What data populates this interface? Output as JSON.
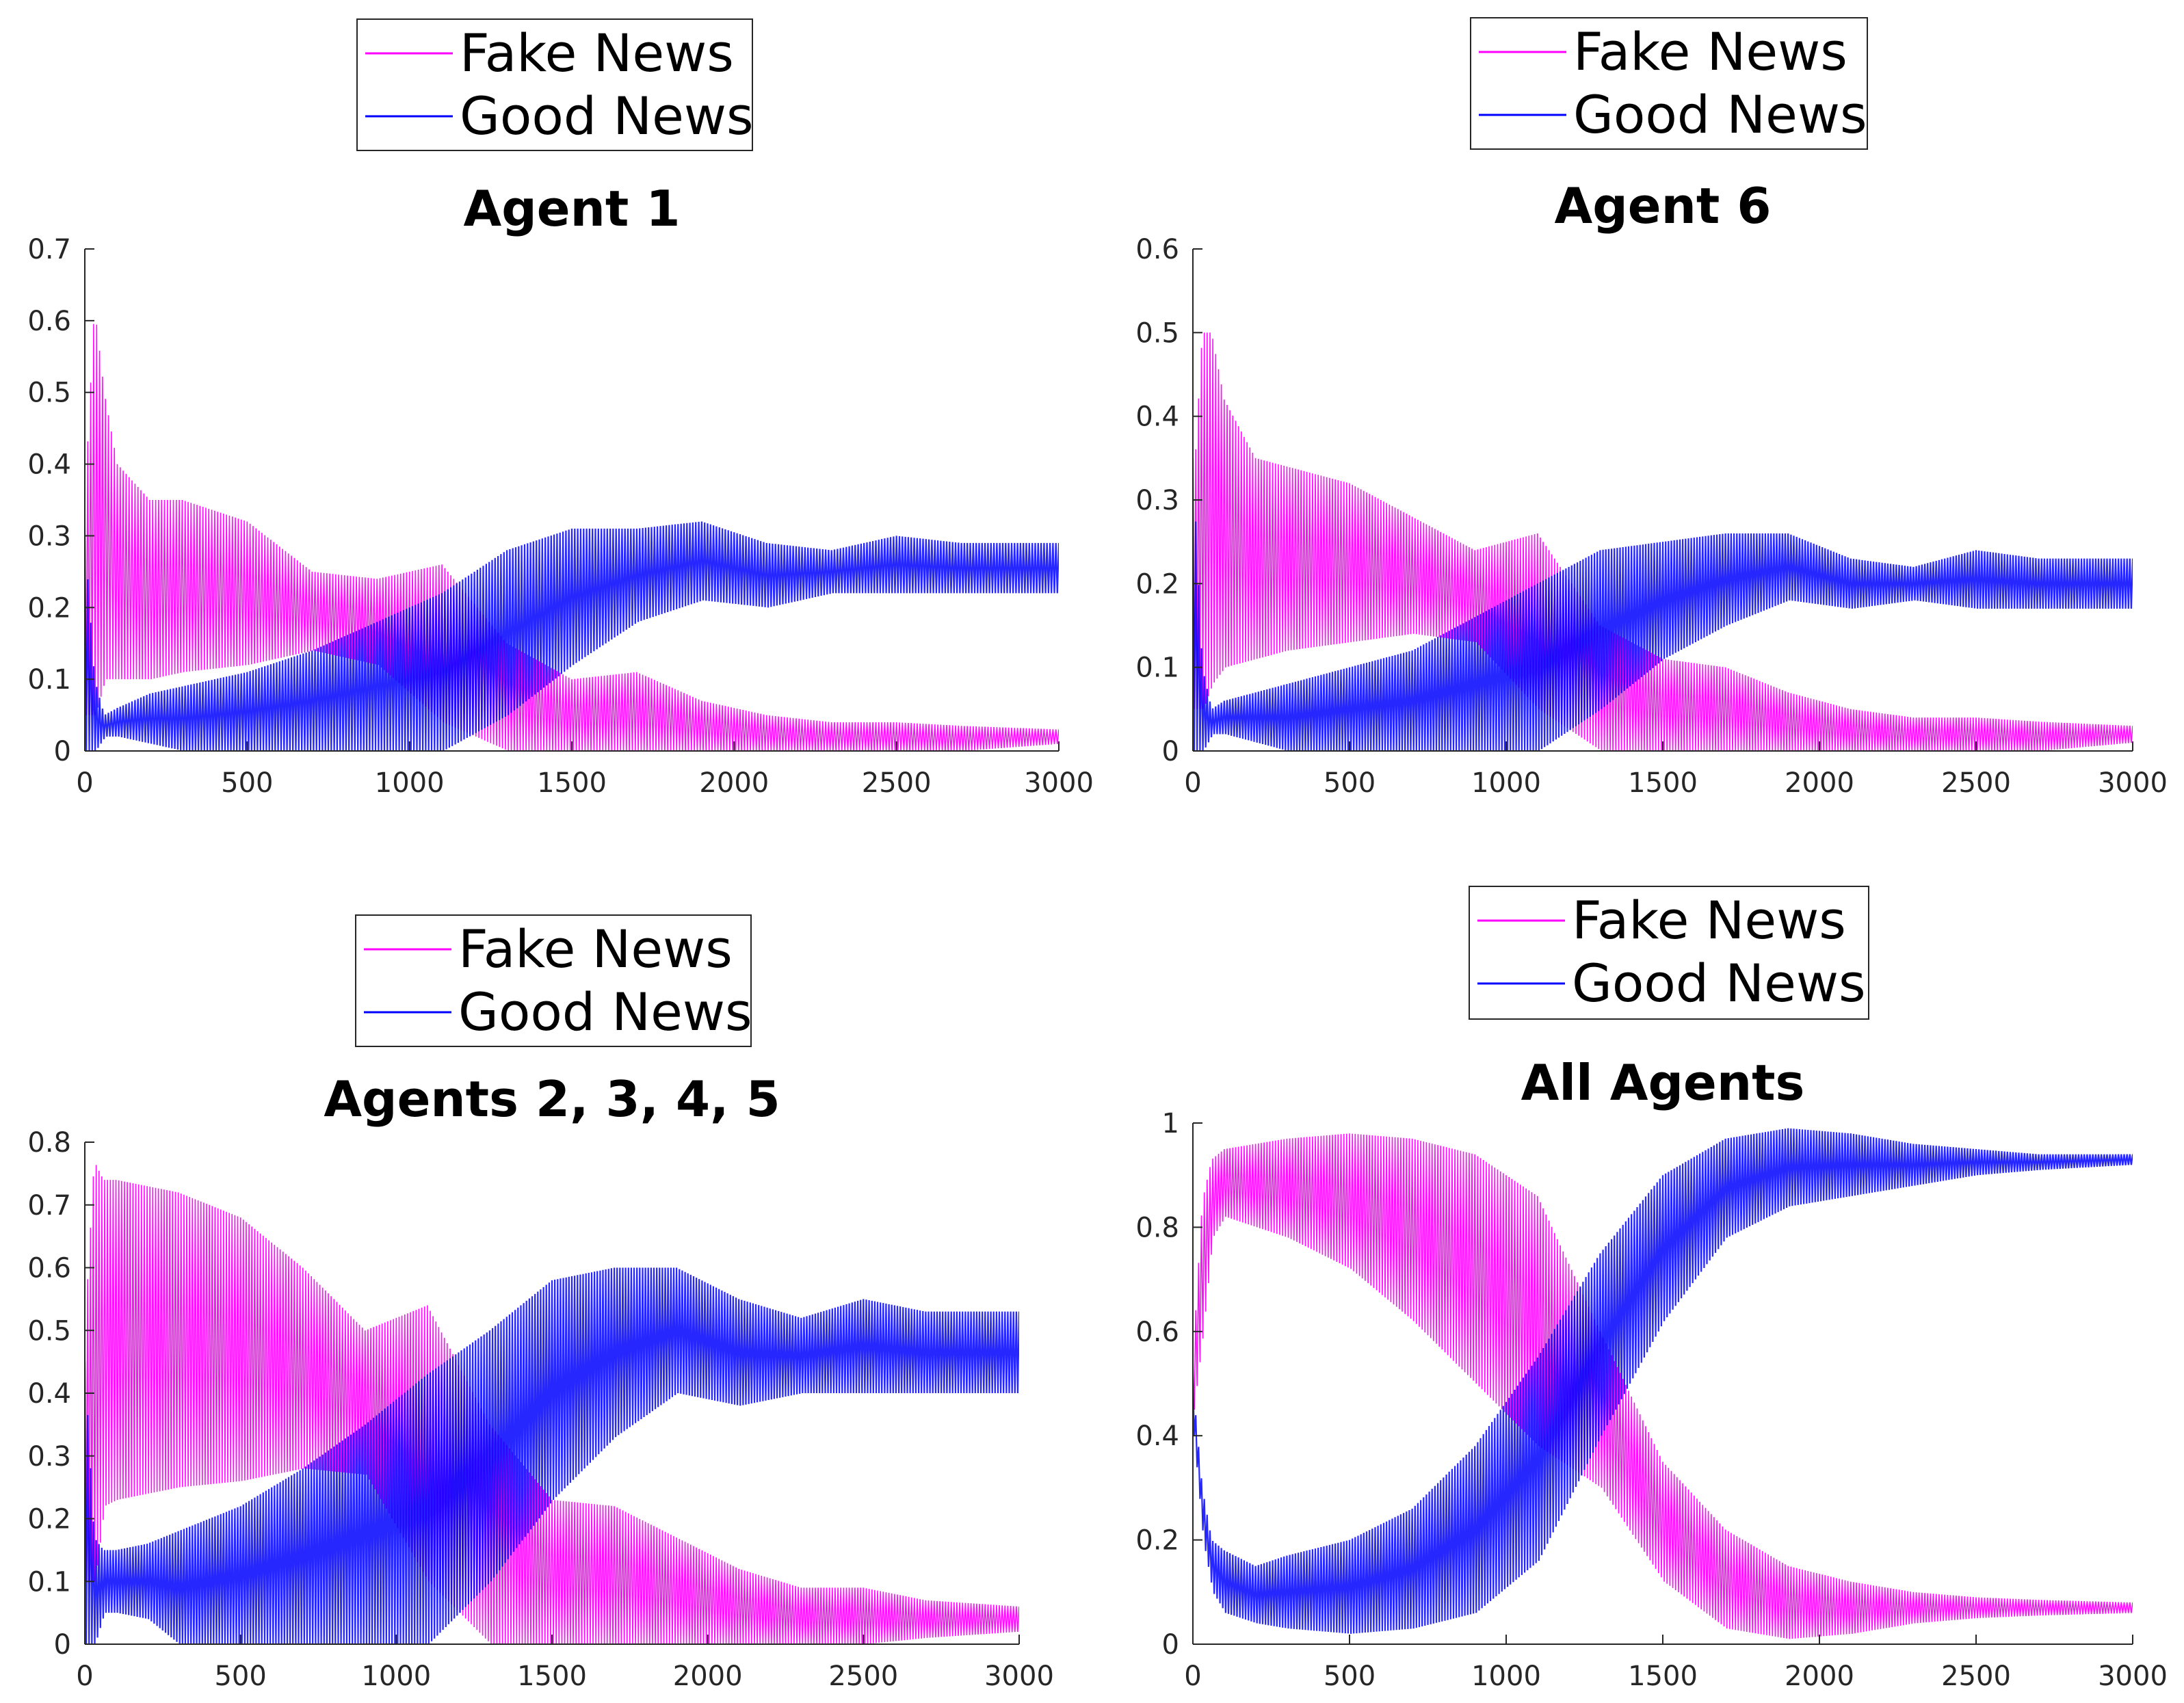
{
  "colors": {
    "fake": "#ff00ff",
    "good": "#0000ff",
    "axis": "#262626",
    "text": "#000000"
  },
  "chart_data": [
    {
      "type": "line",
      "title": "Agent 1",
      "xlabel": "",
      "ylabel": "",
      "xlim": [
        0,
        3000
      ],
      "ylim": [
        0,
        0.7
      ],
      "xticks": [
        0,
        500,
        1000,
        1500,
        2000,
        2500,
        3000
      ],
      "xtick_labels": [
        "0",
        "500",
        "1000",
        "1500",
        "2000",
        "2500",
        "3000"
      ],
      "yticks": [
        0,
        0.1,
        0.2,
        0.3,
        0.4,
        0.5,
        0.6,
        0.7
      ],
      "ytick_labels": [
        "0",
        "0.1",
        "0.2",
        "0.3",
        "0.4",
        "0.5",
        "0.6",
        "0.7"
      ],
      "legend": "top-center",
      "x": [
        0,
        30,
        60,
        100,
        200,
        300,
        500,
        700,
        900,
        1100,
        1300,
        1500,
        1700,
        1900,
        2100,
        2300,
        2500,
        2700,
        3000
      ],
      "series": [
        {
          "name": "Fake News",
          "upper": [
            0.35,
            0.62,
            0.5,
            0.4,
            0.35,
            0.35,
            0.32,
            0.25,
            0.24,
            0.26,
            0.15,
            0.1,
            0.11,
            0.07,
            0.05,
            0.04,
            0.04,
            0.035,
            0.03
          ],
          "lower": [
            0.05,
            0.05,
            0.1,
            0.1,
            0.1,
            0.11,
            0.12,
            0.14,
            0.12,
            0.04,
            0.0,
            0.0,
            0.0,
            0.0,
            0.0,
            0.0,
            0.0,
            0.0,
            0.01
          ]
        },
        {
          "name": "Good News",
          "upper": [
            0.3,
            0.1,
            0.05,
            0.06,
            0.08,
            0.09,
            0.11,
            0.14,
            0.18,
            0.22,
            0.28,
            0.31,
            0.31,
            0.32,
            0.29,
            0.28,
            0.3,
            0.29,
            0.29
          ],
          "lower": [
            0.0,
            0.0,
            0.02,
            0.02,
            0.01,
            0.0,
            0.0,
            0.0,
            0.0,
            0.0,
            0.05,
            0.12,
            0.18,
            0.21,
            0.2,
            0.22,
            0.22,
            0.22,
            0.22
          ]
        }
      ]
    },
    {
      "type": "line",
      "title": "Agent 6",
      "xlabel": "",
      "ylabel": "",
      "xlim": [
        0,
        3000
      ],
      "ylim": [
        0,
        0.6
      ],
      "xticks": [
        0,
        500,
        1000,
        1500,
        2000,
        2500,
        3000
      ],
      "xtick_labels": [
        "0",
        "500",
        "1000",
        "1500",
        "2000",
        "2500",
        "3000"
      ],
      "yticks": [
        0,
        0.1,
        0.2,
        0.3,
        0.4,
        0.5,
        0.6
      ],
      "ytick_labels": [
        "0",
        "0.1",
        "0.2",
        "0.3",
        "0.4",
        "0.5",
        "0.6"
      ],
      "legend": "top-center",
      "x": [
        0,
        30,
        60,
        100,
        200,
        300,
        500,
        700,
        900,
        1100,
        1300,
        1500,
        1700,
        1900,
        2100,
        2300,
        2500,
        2700,
        3000
      ],
      "series": [
        {
          "name": "Fake News",
          "upper": [
            0.3,
            0.5,
            0.5,
            0.42,
            0.35,
            0.34,
            0.32,
            0.28,
            0.24,
            0.26,
            0.15,
            0.11,
            0.1,
            0.07,
            0.05,
            0.04,
            0.04,
            0.035,
            0.03
          ],
          "lower": [
            0.05,
            0.05,
            0.08,
            0.1,
            0.11,
            0.12,
            0.13,
            0.14,
            0.13,
            0.05,
            0.0,
            0.0,
            0.0,
            0.0,
            0.0,
            0.0,
            0.0,
            0.0,
            0.01
          ]
        },
        {
          "name": "Good News",
          "upper": [
            0.35,
            0.1,
            0.05,
            0.06,
            0.07,
            0.08,
            0.1,
            0.12,
            0.16,
            0.2,
            0.24,
            0.25,
            0.26,
            0.26,
            0.23,
            0.22,
            0.24,
            0.23,
            0.23
          ],
          "lower": [
            0.0,
            0.0,
            0.02,
            0.02,
            0.01,
            0.0,
            0.0,
            0.0,
            0.0,
            0.0,
            0.05,
            0.11,
            0.15,
            0.18,
            0.17,
            0.18,
            0.17,
            0.17,
            0.17
          ]
        }
      ]
    },
    {
      "type": "line",
      "title": "Agents 2, 3, 4, 5",
      "xlabel": "",
      "ylabel": "",
      "xlim": [
        0,
        3000
      ],
      "ylim": [
        0,
        0.8
      ],
      "xticks": [
        0,
        500,
        1000,
        1500,
        2000,
        2500,
        3000
      ],
      "xtick_labels": [
        "0",
        "500",
        "1000",
        "1500",
        "2000",
        "2500",
        "3000"
      ],
      "yticks": [
        0,
        0.1,
        0.2,
        0.3,
        0.4,
        0.5,
        0.6,
        0.7,
        0.8
      ],
      "ytick_labels": [
        "0",
        "0.1",
        "0.2",
        "0.3",
        "0.4",
        "0.5",
        "0.6",
        "0.7",
        "0.8"
      ],
      "legend": "top-center",
      "x": [
        0,
        30,
        60,
        100,
        200,
        300,
        500,
        700,
        900,
        1100,
        1300,
        1500,
        1700,
        1900,
        2100,
        2300,
        2500,
        2700,
        3000
      ],
      "series": [
        {
          "name": "Fake News",
          "upper": [
            0.5,
            0.77,
            0.74,
            0.74,
            0.73,
            0.72,
            0.68,
            0.6,
            0.5,
            0.54,
            0.35,
            0.23,
            0.22,
            0.17,
            0.12,
            0.09,
            0.09,
            0.07,
            0.06
          ],
          "lower": [
            0.1,
            0.1,
            0.22,
            0.23,
            0.24,
            0.25,
            0.26,
            0.28,
            0.27,
            0.1,
            0.0,
            0.0,
            0.0,
            0.0,
            0.0,
            0.0,
            0.0,
            0.01,
            0.02
          ]
        },
        {
          "name": "Good News",
          "upper": [
            0.45,
            0.17,
            0.15,
            0.15,
            0.16,
            0.18,
            0.22,
            0.28,
            0.35,
            0.43,
            0.5,
            0.58,
            0.6,
            0.6,
            0.55,
            0.52,
            0.55,
            0.53,
            0.53
          ],
          "lower": [
            0.0,
            0.0,
            0.05,
            0.05,
            0.04,
            0.0,
            0.0,
            0.0,
            0.0,
            0.0,
            0.1,
            0.23,
            0.33,
            0.4,
            0.38,
            0.4,
            0.4,
            0.4,
            0.4
          ]
        }
      ]
    },
    {
      "type": "line",
      "title": "All Agents",
      "xlabel": "",
      "ylabel": "",
      "xlim": [
        0,
        3000
      ],
      "ylim": [
        0,
        1
      ],
      "xticks": [
        0,
        500,
        1000,
        1500,
        2000,
        2500,
        3000
      ],
      "xtick_labels": [
        "0",
        "500",
        "1000",
        "1500",
        "2000",
        "2500",
        "3000"
      ],
      "yticks": [
        0,
        0.2,
        0.4,
        0.6,
        0.8,
        1
      ],
      "ytick_labels": [
        "0",
        "0.2",
        "0.4",
        "0.6",
        "0.8",
        "1"
      ],
      "legend": "top-center",
      "x": [
        0,
        30,
        60,
        100,
        200,
        300,
        500,
        700,
        900,
        1100,
        1300,
        1500,
        1700,
        1900,
        2100,
        2300,
        2500,
        2700,
        3000
      ],
      "series": [
        {
          "name": "Fake News",
          "upper": [
            0.55,
            0.85,
            0.93,
            0.95,
            0.96,
            0.97,
            0.98,
            0.97,
            0.94,
            0.86,
            0.6,
            0.35,
            0.22,
            0.15,
            0.12,
            0.1,
            0.09,
            0.085,
            0.08
          ],
          "lower": [
            0.45,
            0.6,
            0.78,
            0.82,
            0.8,
            0.78,
            0.72,
            0.62,
            0.5,
            0.38,
            0.3,
            0.12,
            0.03,
            0.01,
            0.02,
            0.04,
            0.05,
            0.055,
            0.06
          ]
        },
        {
          "name": "Good News",
          "upper": [
            0.5,
            0.3,
            0.2,
            0.18,
            0.15,
            0.17,
            0.2,
            0.26,
            0.38,
            0.55,
            0.75,
            0.9,
            0.97,
            0.99,
            0.98,
            0.96,
            0.95,
            0.94,
            0.94
          ],
          "lower": [
            0.4,
            0.2,
            0.1,
            0.06,
            0.04,
            0.03,
            0.02,
            0.03,
            0.06,
            0.16,
            0.4,
            0.62,
            0.78,
            0.84,
            0.86,
            0.88,
            0.9,
            0.91,
            0.92
          ]
        }
      ]
    }
  ]
}
